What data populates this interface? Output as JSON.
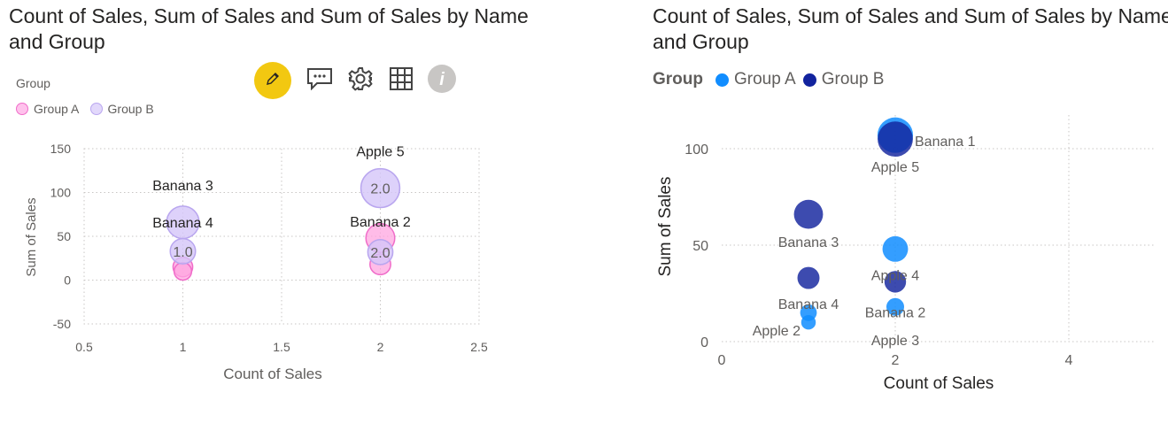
{
  "chart_data": [
    {
      "type": "scatter",
      "title": "Count of Sales, Sum of Sales and Sum of Sales by Name and Group",
      "xlabel": "Count of Sales",
      "ylabel": "Sum of Sales",
      "xlim": [
        0.5,
        2.5
      ],
      "ylim": [
        -50,
        150
      ],
      "xticks": [
        "0.5",
        "1",
        "1.5",
        "2",
        "2.5"
      ],
      "yticks": [
        "150",
        "100",
        "50",
        "0",
        "-50"
      ],
      "grid": true,
      "legend_title": "Group",
      "legend_position": "top-left",
      "series": [
        {
          "name": "Group A",
          "color": "#ff8ad8",
          "points": [
            {
              "x": 1,
              "y": 15,
              "size": 15
            },
            {
              "x": 1,
              "y": 10,
              "size": 10
            },
            {
              "x": 2,
              "y": 48,
              "size": 48
            },
            {
              "x": 2,
              "y": 18,
              "size": 18
            }
          ]
        },
        {
          "name": "Group B",
          "color": "#c9b8f5",
          "points": [
            {
              "x": 1,
              "y": 66,
              "size": 66
            },
            {
              "x": 1,
              "y": 33,
              "size": 33
            },
            {
              "x": 2,
              "y": 105,
              "size": 105
            },
            {
              "x": 2,
              "y": 32,
              "size": 32
            }
          ]
        }
      ],
      "labels": [
        {
          "text": "Banana 3",
          "x": 1,
          "y": 66,
          "pos": "above-far"
        },
        {
          "text": "Banana 4",
          "x": 1,
          "y": 66,
          "pos": "mid"
        },
        {
          "text": "1.0",
          "x": 1,
          "y": 33,
          "pos": "center"
        },
        {
          "text": "Apple 5",
          "x": 2,
          "y": 105,
          "pos": "above-far"
        },
        {
          "text": "2.0",
          "x": 2,
          "y": 105,
          "pos": "center"
        },
        {
          "text": "Banana 2",
          "x": 2,
          "y": 48,
          "pos": "above"
        },
        {
          "text": "2.0",
          "x": 2,
          "y": 32,
          "pos": "center"
        }
      ]
    },
    {
      "type": "scatter",
      "title": "Count of Sales, Sum of Sales and Sum of Sales by Name and Group",
      "xlabel": "Count of Sales",
      "ylabel": "Sum of Sales",
      "xlim": [
        0,
        5
      ],
      "ylim": [
        -8,
        118
      ],
      "xticks": [
        "0",
        "2",
        "4"
      ],
      "yticks": [
        "100",
        "50",
        "0"
      ],
      "grid": true,
      "legend_title": "Group",
      "legend_position": "top-left",
      "series": [
        {
          "name": "Group A",
          "color": "#118dff",
          "points": [
            {
              "x": 2,
              "y": 107,
              "size": 107
            },
            {
              "x": 2,
              "y": 48,
              "size": 48
            },
            {
              "x": 2,
              "y": 18,
              "size": 18
            },
            {
              "x": 1,
              "y": 15,
              "size": 15
            },
            {
              "x": 1,
              "y": 10,
              "size": 10
            }
          ]
        },
        {
          "name": "Group B",
          "color": "#12239e",
          "points": [
            {
              "x": 2,
              "y": 105,
              "size": 105
            },
            {
              "x": 1,
              "y": 66,
              "size": 66
            },
            {
              "x": 1,
              "y": 33,
              "size": 33
            },
            {
              "x": 2,
              "y": 31,
              "size": 31
            }
          ]
        }
      ],
      "labels": [
        {
          "text": "Banana 1",
          "x": 2,
          "y": 105,
          "pos": "right"
        },
        {
          "text": "Apple 5",
          "x": 2,
          "y": 105,
          "pos": "below"
        },
        {
          "text": "Banana 3",
          "x": 1,
          "y": 66,
          "pos": "below"
        },
        {
          "text": "Apple 4",
          "x": 2,
          "y": 48,
          "pos": "below"
        },
        {
          "text": "Banana 4",
          "x": 1,
          "y": 33,
          "pos": "below"
        },
        {
          "text": "Banana 2",
          "x": 2,
          "y": 31,
          "pos": "below"
        },
        {
          "text": "Apple 2",
          "x": 1,
          "y": 10,
          "pos": "left-below"
        },
        {
          "text": "Apple 3",
          "x": 2,
          "y": 18,
          "pos": "below-far"
        }
      ]
    }
  ],
  "left_legend": {
    "title": "Group",
    "items": [
      {
        "label": "Group A",
        "color": "#ff8ad8"
      },
      {
        "label": "Group B",
        "color": "#c9b8f5"
      }
    ]
  },
  "right_legend": {
    "title": "Group",
    "items": [
      {
        "label": "Group A",
        "color": "#118dff"
      },
      {
        "label": "Group B",
        "color": "#12239e"
      }
    ]
  },
  "toolbar": {
    "icons": [
      "pencil-icon",
      "comment-icon",
      "gear-icon",
      "table-icon",
      "info-icon"
    ],
    "accent": "#f2c811"
  }
}
